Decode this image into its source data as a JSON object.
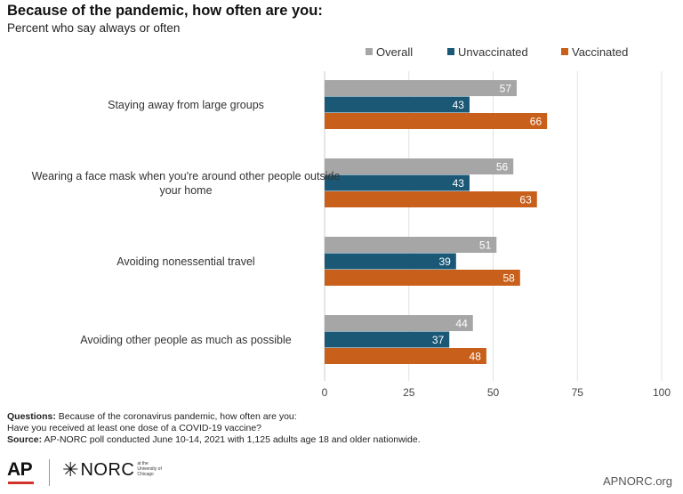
{
  "header": {
    "title": "Because of the pandemic, how often are you:",
    "subtitle": "Percent who say always or often"
  },
  "footer": {
    "questions_label": "Questions:",
    "questions_text": "Because of the coronavirus pandemic, how often are you:",
    "question2": "Have you received at least one dose of a COVID-19 vaccine?",
    "source_label": "Source:",
    "source_text": "AP-NORC poll conducted June 10-14, 2021 with 1,125 adults age 18 and older nationwide.",
    "logo_ap": "AP",
    "logo_norc": "NORC",
    "logo_norc_small": "at the University of Chicago",
    "site": "APNORC.org"
  },
  "chart_data": {
    "type": "bar",
    "orientation": "horizontal",
    "categories": [
      [
        "Staying away from large groups"
      ],
      [
        "Wearing a face mask when you're around other people outside",
        "your home"
      ],
      [
        "Avoiding nonessential travel"
      ],
      [
        "Avoiding other people as much as possible"
      ]
    ],
    "series": [
      {
        "name": "Overall",
        "color": "#a6a6a6",
        "values": [
          57,
          56,
          51,
          44
        ]
      },
      {
        "name": "Unvaccinated",
        "color": "#1a5876",
        "values": [
          43,
          43,
          39,
          37
        ]
      },
      {
        "name": "Vaccinated",
        "color": "#c85f1b",
        "values": [
          66,
          63,
          58,
          48
        ]
      }
    ],
    "xlim": [
      0,
      100
    ],
    "xticks": [
      0,
      25,
      50,
      75,
      100
    ],
    "grid": true,
    "legend_position": "top-right",
    "data_labels": true
  }
}
